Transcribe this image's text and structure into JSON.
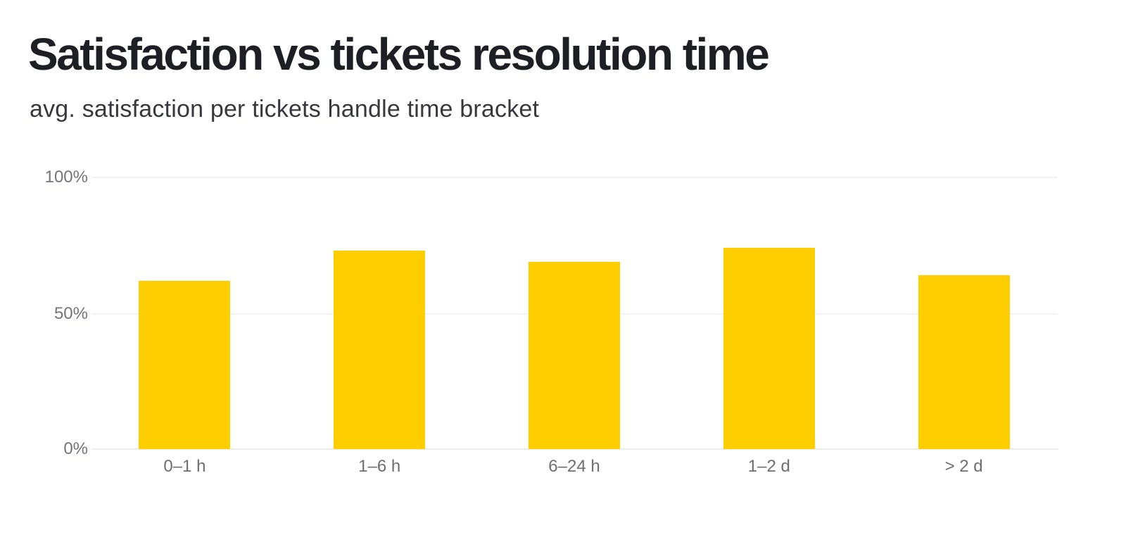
{
  "header": {
    "title": "Satisfaction vs tickets resolution time",
    "subtitle": "avg. satisfaction per tickets handle time bracket"
  },
  "chart_data": {
    "type": "bar",
    "title": "Satisfaction vs tickets resolution time",
    "subtitle": "avg. satisfaction per tickets handle time bracket",
    "categories": [
      "0–1 h",
      "1–6 h",
      "6–24 h",
      "1–2 d",
      "> 2 d"
    ],
    "values": [
      62,
      73,
      69,
      74,
      64
    ],
    "unit": "%",
    "xlabel": "",
    "ylabel": "",
    "ylim": [
      0,
      100
    ],
    "yticks": [
      "0%",
      "50%",
      "100%"
    ],
    "grid": true,
    "legend": false,
    "bar_color": "#FFCE00"
  },
  "colors": {
    "background": "#ffffff",
    "title": "#1d1f24",
    "subtitle": "#36383d",
    "axis_label": "#74757a",
    "gridline": "#f2f2f4",
    "bar": "#FFCE00"
  }
}
